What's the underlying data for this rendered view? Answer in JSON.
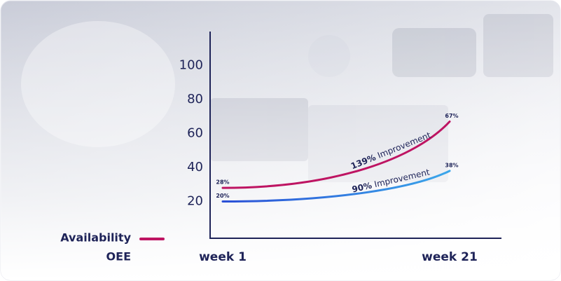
{
  "chart_data": {
    "type": "line",
    "categories": [
      "week 1",
      "week 21"
    ],
    "series": [
      {
        "name": "Availability",
        "color": "#be1462",
        "values": [
          28,
          67
        ],
        "value_labels": [
          "28%",
          "67%"
        ]
      },
      {
        "name": "OEE",
        "color": "#2a4fd6",
        "values": [
          20,
          38
        ],
        "value_labels": [
          "20%",
          "38%"
        ]
      }
    ],
    "annotations": [
      {
        "highlight": "139%",
        "text": "Improvement"
      },
      {
        "highlight": "90%",
        "text": "Improvement"
      }
    ],
    "ylim": [
      0,
      120
    ],
    "yticks": [
      20,
      40,
      60,
      80,
      100
    ],
    "grid": false,
    "legend": "bottom-left"
  }
}
